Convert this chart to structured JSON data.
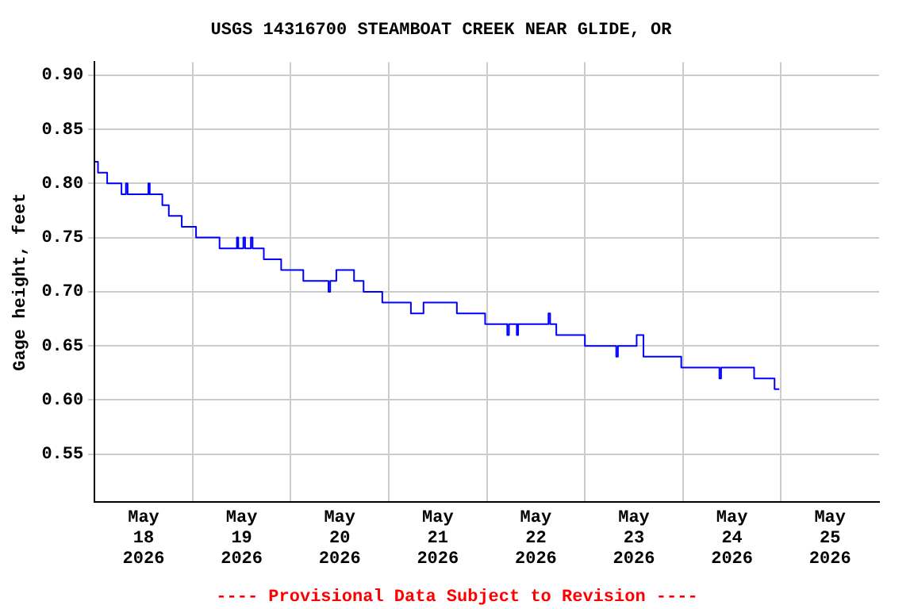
{
  "chart_data": {
    "type": "step",
    "title": "USGS 14316700 STEAMBOAT CREEK NEAR GLIDE, OR",
    "ylabel": "Gage height, feet",
    "annotations": [
      "---- Provisional Data Subject to Revision ----"
    ],
    "xlim": [
      "2026-05-18T00:00",
      "2026-05-26T00:00"
    ],
    "xticks": [
      {
        "value": "2026-05-18T12:00",
        "label": "May\n18\n2026"
      },
      {
        "value": "2026-05-19T00:00",
        "label": null
      },
      {
        "value": "2026-05-19T12:00",
        "label": "May\n19\n2026"
      },
      {
        "value": "2026-05-20T00:00",
        "label": null
      },
      {
        "value": "2026-05-20T12:00",
        "label": "May\n20\n2026"
      },
      {
        "value": "2026-05-21T00:00",
        "label": null
      },
      {
        "value": "2026-05-21T12:00",
        "label": "May\n21\n2026"
      },
      {
        "value": "2026-05-22T00:00",
        "label": null
      },
      {
        "value": "2026-05-22T12:00",
        "label": "May\n22\n2026"
      },
      {
        "value": "2026-05-23T00:00",
        "label": null
      },
      {
        "value": "2026-05-23T12:00",
        "label": "May\n23\n2026"
      },
      {
        "value": "2026-05-24T00:00",
        "label": null
      },
      {
        "value": "2026-05-24T12:00",
        "label": "May\n24\n2026"
      },
      {
        "value": "2026-05-25T00:00",
        "label": null
      },
      {
        "value": "2026-05-25T12:00",
        "label": "May\n25\n2026"
      }
    ],
    "ylim": [
      0.506,
      0.912
    ],
    "yticks": [
      0.55,
      {
        "value": 0.6,
        "label": "0.60"
      },
      0.65,
      {
        "value": 0.7,
        "label": "0.70"
      },
      0.75,
      {
        "value": 0.8,
        "label": "0.80"
      },
      0.85,
      {
        "value": 0.9,
        "label": "0.90"
      }
    ],
    "grid": true,
    "legend": false,
    "x": [
      "2026-05-18T00:00",
      "2026-05-18T00:50",
      "2026-05-18T03:05",
      "2026-05-18T06:35",
      "2026-05-18T07:40",
      "2026-05-18T08:05",
      "2026-05-18T13:10",
      "2026-05-18T13:30",
      "2026-05-18T16:35",
      "2026-05-18T18:10",
      "2026-05-18T21:20",
      "2026-05-19T00:50",
      "2026-05-19T06:35",
      "2026-05-19T10:50",
      "2026-05-19T11:10",
      "2026-05-19T12:25",
      "2026-05-19T12:50",
      "2026-05-19T14:15",
      "2026-05-19T14:40",
      "2026-05-19T17:25",
      "2026-05-19T21:40",
      "2026-05-20T03:05",
      "2026-05-20T09:15",
      "2026-05-20T09:40",
      "2026-05-20T11:10",
      "2026-05-20T15:30",
      "2026-05-20T17:50",
      "2026-05-20T22:25",
      "2026-05-21T05:25",
      "2026-05-21T08:30",
      "2026-05-21T16:40",
      "2026-05-21T23:35",
      "2026-05-22T05:00",
      "2026-05-22T05:25",
      "2026-05-22T07:20",
      "2026-05-22T07:40",
      "2026-05-22T15:05",
      "2026-05-22T15:30",
      "2026-05-22T17:00",
      "2026-05-23T00:00",
      "2026-05-23T07:40",
      "2026-05-23T08:05",
      "2026-05-23T12:40",
      "2026-05-23T14:20",
      "2026-05-23T23:35",
      "2026-05-24T08:55",
      "2026-05-24T09:20",
      "2026-05-24T17:25",
      "2026-05-24T22:25",
      "2026-05-24T23:35"
    ],
    "series": [
      {
        "color": "#0000ff",
        "values": [
          0.82,
          0.81,
          0.8,
          0.79,
          0.8,
          0.79,
          0.8,
          0.79,
          0.78,
          0.77,
          0.76,
          0.75,
          0.74,
          0.75,
          0.74,
          0.75,
          0.74,
          0.75,
          0.74,
          0.73,
          0.72,
          0.71,
          0.7,
          0.71,
          0.72,
          0.71,
          0.7,
          0.69,
          0.68,
          0.69,
          0.68,
          0.67,
          0.66,
          0.67,
          0.66,
          0.67,
          0.68,
          0.67,
          0.66,
          0.65,
          0.64,
          0.65,
          0.66,
          0.64,
          0.63,
          0.62,
          0.63,
          0.62,
          0.61,
          0.61
        ]
      }
    ]
  }
}
